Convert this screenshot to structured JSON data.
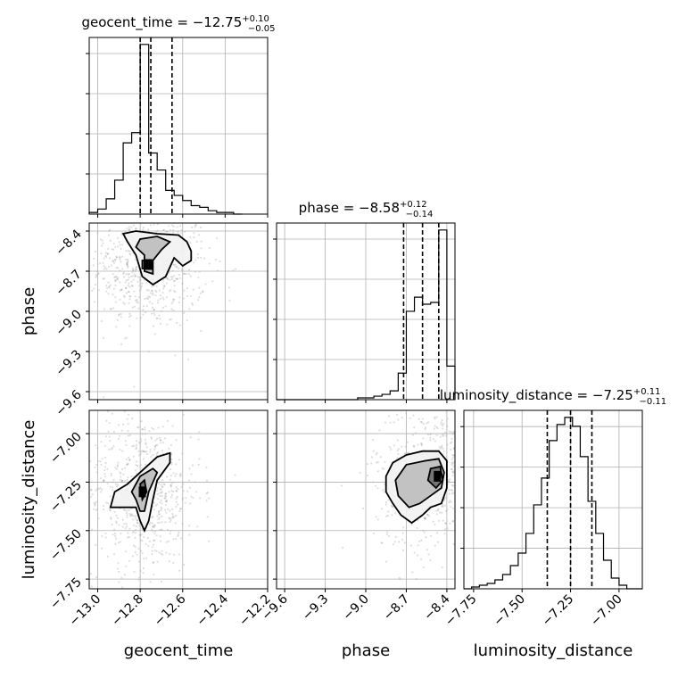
{
  "chart_data": {
    "type": "corner",
    "parameters": [
      {
        "name": "geocent_time",
        "label": "geocent_time",
        "median": -12.75,
        "plus": 0.1,
        "minus": 0.05,
        "title_main": "geocent_time = −12.75",
        "title_plus": "+0.10",
        "title_minus": "−0.05",
        "range": [
          -13.04,
          -12.2
        ],
        "ticks": [
          -13.0,
          -12.8,
          -12.6,
          -12.4,
          -12.2
        ],
        "tick_labels": [
          "−13.0",
          "−12.8",
          "−12.6",
          "−12.4",
          "−12.2"
        ],
        "quantiles": [
          -12.8,
          -12.75,
          -12.65
        ],
        "hist_edges": [
          -13.04,
          -13.0,
          -12.96,
          -12.92,
          -12.88,
          -12.84,
          -12.8,
          -12.76,
          -12.72,
          -12.68,
          -12.64,
          -12.6,
          -12.56,
          -12.52,
          -12.48,
          -12.44,
          -12.4,
          -12.36,
          -12.32
        ],
        "hist_counts": [
          1,
          3,
          9,
          20,
          42,
          48,
          100,
          36,
          26,
          14,
          11,
          8,
          5,
          4,
          2,
          1,
          1,
          0
        ]
      },
      {
        "name": "phase",
        "label": "phase",
        "median": -8.58,
        "plus": 0.12,
        "minus": 0.14,
        "title_main": "phase = −8.58",
        "title_plus": "+0.12",
        "title_minus": "−0.14",
        "range": [
          -9.66,
          -8.34
        ],
        "ticks": [
          -9.6,
          -9.3,
          -9.0,
          -8.7,
          -8.4
        ],
        "tick_labels": [
          "−9.6",
          "−9.3",
          "−9.0",
          "−8.7",
          "−8.4"
        ],
        "quantiles": [
          -8.72,
          -8.58,
          -8.46
        ],
        "hist_edges": [
          -9.66,
          -9.6,
          -9.54,
          -9.48,
          -9.42,
          -9.36,
          -9.3,
          -9.24,
          -9.18,
          -9.12,
          -9.06,
          -9.0,
          -8.94,
          -8.88,
          -8.82,
          -8.76,
          -8.7,
          -8.64,
          -8.58,
          -8.52,
          -8.46,
          -8.4,
          -8.34
        ],
        "hist_counts": [
          0,
          0,
          0,
          0,
          0,
          0,
          0,
          0,
          0,
          0,
          1,
          1,
          2,
          3,
          5,
          15,
          50,
          58,
          54,
          55,
          96,
          19
        ],
        "axis_label": "phase"
      },
      {
        "name": "luminosity_distance",
        "label": "luminosity_distance",
        "median": -7.25,
        "plus": 0.11,
        "minus": 0.11,
        "title_main": "luminosity_distance = −7.25",
        "title_plus": "+0.11",
        "title_minus": "−0.11",
        "range": [
          -7.8,
          -6.88
        ],
        "ticks": [
          -7.75,
          -7.5,
          -7.25,
          -7.0
        ],
        "tick_labels": [
          "−7.75",
          "−7.50",
          "−7.25",
          "−7.00"
        ],
        "quantiles": [
          -7.37,
          -7.25,
          -7.14
        ],
        "hist_edges": [
          -7.8,
          -7.76,
          -7.72,
          -7.68,
          -7.64,
          -7.6,
          -7.56,
          -7.52,
          -7.48,
          -7.44,
          -7.4,
          -7.36,
          -7.32,
          -7.28,
          -7.24,
          -7.2,
          -7.16,
          -7.12,
          -7.08,
          -7.04,
          -7.0,
          -6.96,
          -6.92,
          -6.88
        ],
        "hist_counts": [
          0,
          1,
          2,
          3,
          5,
          8,
          13,
          20,
          31,
          47,
          62,
          83,
          92,
          96,
          91,
          74,
          49,
          31,
          16,
          6,
          2,
          0,
          0
        ]
      }
    ],
    "pairs": [
      {
        "x": "geocent_time",
        "y": "phase",
        "peak": [
          -12.76,
          -8.65
        ],
        "contours": [
          [
            [
              -12.88,
              -8.42
            ],
            [
              -12.82,
              -8.4
            ],
            [
              -12.72,
              -8.42
            ],
            [
              -12.62,
              -8.43
            ],
            [
              -12.58,
              -8.48
            ],
            [
              -12.56,
              -8.55
            ],
            [
              -12.56,
              -8.62
            ],
            [
              -12.6,
              -8.66
            ],
            [
              -12.64,
              -8.6
            ],
            [
              -12.68,
              -8.74
            ],
            [
              -12.74,
              -8.8
            ],
            [
              -12.79,
              -8.74
            ],
            [
              -12.82,
              -8.58
            ],
            [
              -12.86,
              -8.48
            ]
          ],
          [
            [
              -12.8,
              -8.46
            ],
            [
              -12.72,
              -8.44
            ],
            [
              -12.66,
              -8.48
            ],
            [
              -12.7,
              -8.54
            ],
            [
              -12.74,
              -8.62
            ],
            [
              -12.74,
              -8.72
            ],
            [
              -12.78,
              -8.7
            ],
            [
              -12.78,
              -8.58
            ],
            [
              -12.82,
              -8.52
            ]
          ],
          [
            [
              -12.79,
              -8.62
            ],
            [
              -12.75,
              -8.62
            ],
            [
              -12.75,
              -8.68
            ],
            [
              -12.79,
              -8.68
            ]
          ]
        ]
      },
      {
        "x": "geocent_time",
        "y": "luminosity_distance",
        "peak": [
          -12.79,
          -7.3
        ],
        "contours": [
          [
            [
              -12.94,
              -7.38
            ],
            [
              -12.92,
              -7.3
            ],
            [
              -12.86,
              -7.26
            ],
            [
              -12.78,
              -7.18
            ],
            [
              -12.72,
              -7.12
            ],
            [
              -12.66,
              -7.1
            ],
            [
              -12.66,
              -7.15
            ],
            [
              -12.72,
              -7.24
            ],
            [
              -12.74,
              -7.34
            ],
            [
              -12.76,
              -7.45
            ],
            [
              -12.78,
              -7.5
            ],
            [
              -12.8,
              -7.45
            ],
            [
              -12.82,
              -7.38
            ],
            [
              -12.88,
              -7.38
            ]
          ],
          [
            [
              -12.84,
              -7.3
            ],
            [
              -12.8,
              -7.22
            ],
            [
              -12.74,
              -7.18
            ],
            [
              -12.72,
              -7.2
            ],
            [
              -12.76,
              -7.3
            ],
            [
              -12.78,
              -7.4
            ],
            [
              -12.8,
              -7.4
            ],
            [
              -12.82,
              -7.34
            ]
          ],
          [
            [
              -12.8,
              -7.26
            ],
            [
              -12.78,
              -7.24
            ],
            [
              -12.77,
              -7.3
            ],
            [
              -12.79,
              -7.34
            ]
          ]
        ]
      },
      {
        "x": "phase",
        "y": "luminosity_distance",
        "peak": [
          -8.47,
          -7.22
        ],
        "contours": [
          [
            [
              -8.85,
              -7.22
            ],
            [
              -8.8,
              -7.15
            ],
            [
              -8.7,
              -7.11
            ],
            [
              -8.58,
              -7.09
            ],
            [
              -8.46,
              -7.09
            ],
            [
              -8.4,
              -7.14
            ],
            [
              -8.4,
              -7.28
            ],
            [
              -8.44,
              -7.36
            ],
            [
              -8.52,
              -7.38
            ],
            [
              -8.58,
              -7.42
            ],
            [
              -8.66,
              -7.46
            ],
            [
              -8.74,
              -7.42
            ],
            [
              -8.8,
              -7.36
            ],
            [
              -8.85,
              -7.3
            ]
          ],
          [
            [
              -8.78,
              -7.24
            ],
            [
              -8.7,
              -7.16
            ],
            [
              -8.56,
              -7.14
            ],
            [
              -8.46,
              -7.13
            ],
            [
              -8.42,
              -7.2
            ],
            [
              -8.44,
              -7.28
            ],
            [
              -8.52,
              -7.32
            ],
            [
              -8.6,
              -7.36
            ],
            [
              -8.68,
              -7.38
            ],
            [
              -8.76,
              -7.32
            ]
          ],
          [
            [
              -8.52,
              -7.18
            ],
            [
              -8.45,
              -7.17
            ],
            [
              -8.43,
              -7.24
            ],
            [
              -8.48,
              -7.28
            ],
            [
              -8.54,
              -7.24
            ]
          ]
        ]
      }
    ],
    "grid": true
  }
}
